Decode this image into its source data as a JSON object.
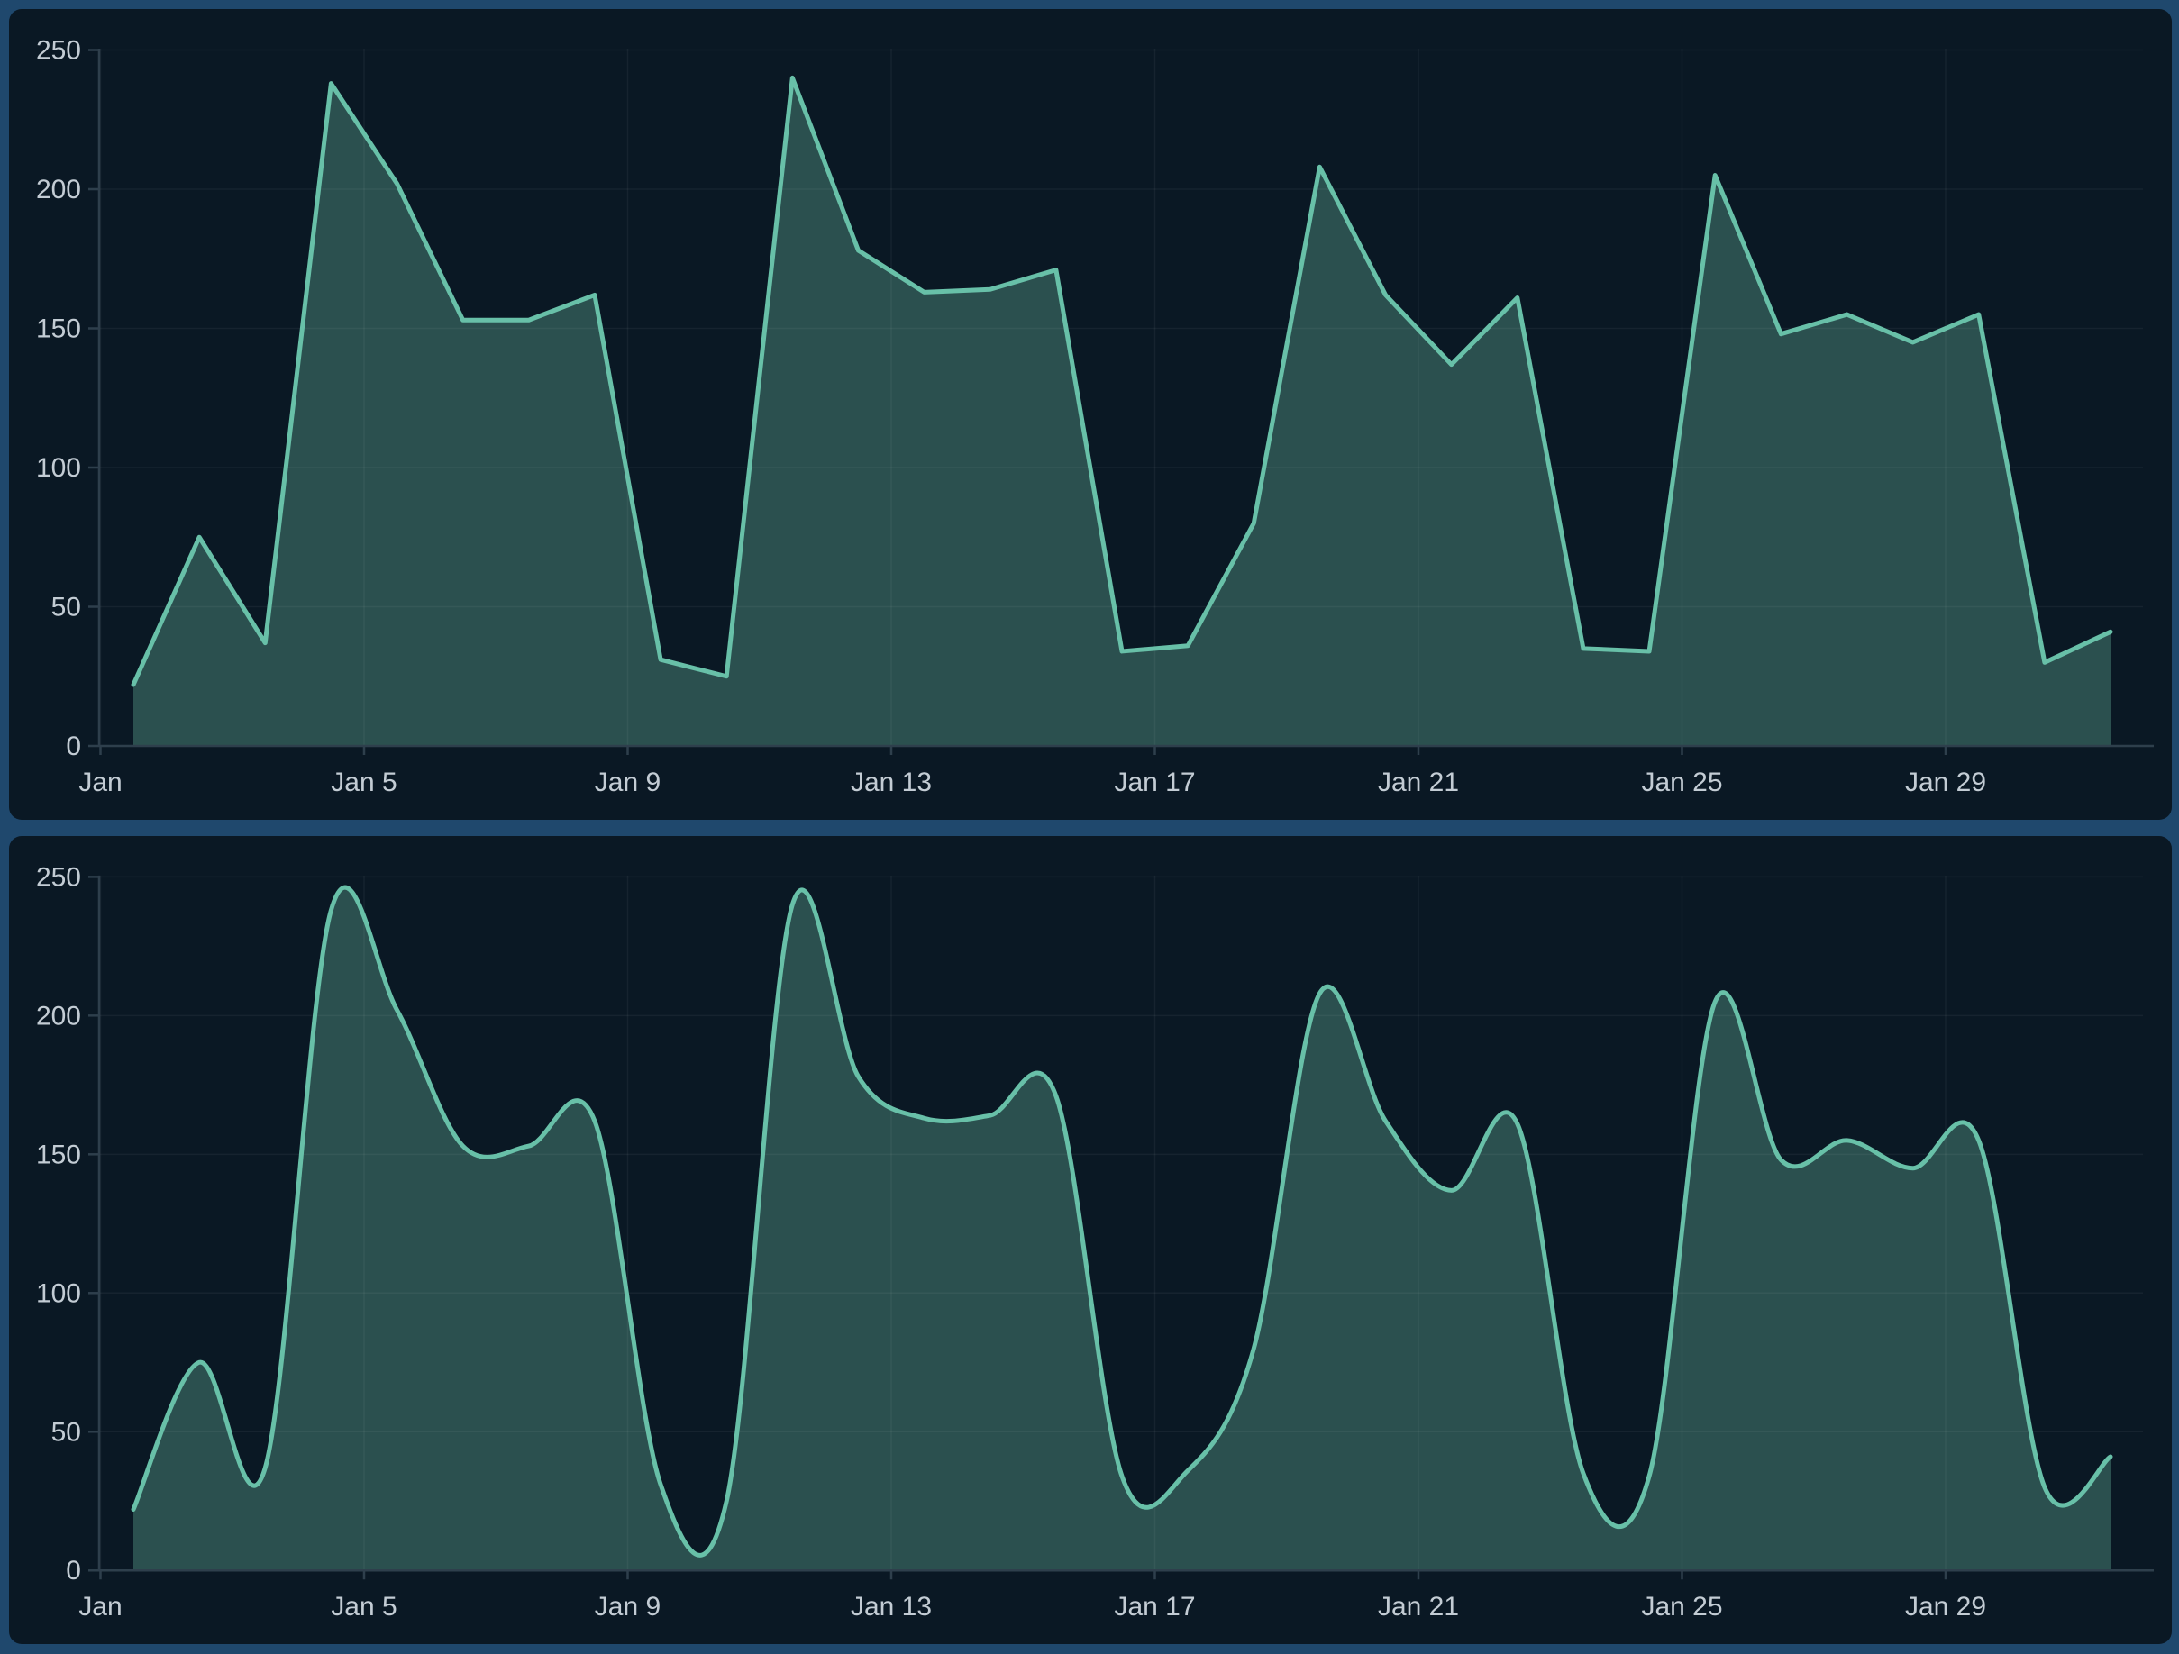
{
  "page": {
    "background_color": "#1f486d",
    "panel_color": "#0a1824"
  },
  "chart_data": [
    {
      "type": "area",
      "name": "daily-series-linear",
      "interpolation": "linear",
      "title": "",
      "xlabel": "",
      "ylabel": "",
      "x": [
        "Jan 1",
        "Jan 2",
        "Jan 3",
        "Jan 4",
        "Jan 5",
        "Jan 6",
        "Jan 7",
        "Jan 8",
        "Jan 9",
        "Jan 10",
        "Jan 11",
        "Jan 12",
        "Jan 13",
        "Jan 14",
        "Jan 15",
        "Jan 16",
        "Jan 17",
        "Jan 18",
        "Jan 19",
        "Jan 20",
        "Jan 21",
        "Jan 22",
        "Jan 23",
        "Jan 24",
        "Jan 25",
        "Jan 26",
        "Jan 27",
        "Jan 28",
        "Jan 29",
        "Jan 30",
        "Jan 31"
      ],
      "values": [
        22,
        75,
        37,
        238,
        202,
        153,
        153,
        162,
        31,
        25,
        240,
        178,
        163,
        164,
        171,
        34,
        36,
        80,
        208,
        162,
        137,
        161,
        35,
        34,
        205,
        148,
        155,
        145,
        155,
        30,
        41
      ],
      "ylim": [
        0,
        250
      ],
      "ytick_labels": [
        "0",
        "50",
        "100",
        "150",
        "200",
        "250"
      ],
      "ytick_values": [
        0,
        50,
        100,
        150,
        200,
        250
      ],
      "xtick_labels": [
        "Jan",
        "Jan 5",
        "Jan 9",
        "Jan 13",
        "Jan 17",
        "Jan 21",
        "Jan 25",
        "Jan 29"
      ],
      "grid": true,
      "legend": false,
      "line_color": "#68c0a8",
      "fill_color": "#2b504f",
      "grid_color": "rgba(255,255,255,0.05)",
      "axis_color": "#2e3f4c",
      "label_color": "#c3ccd4"
    },
    {
      "type": "area",
      "name": "daily-series-smooth",
      "interpolation": "smooth",
      "title": "",
      "xlabel": "",
      "ylabel": "",
      "x": [
        "Jan 1",
        "Jan 2",
        "Jan 3",
        "Jan 4",
        "Jan 5",
        "Jan 6",
        "Jan 7",
        "Jan 8",
        "Jan 9",
        "Jan 10",
        "Jan 11",
        "Jan 12",
        "Jan 13",
        "Jan 14",
        "Jan 15",
        "Jan 16",
        "Jan 17",
        "Jan 18",
        "Jan 19",
        "Jan 20",
        "Jan 21",
        "Jan 22",
        "Jan 23",
        "Jan 24",
        "Jan 25",
        "Jan 26",
        "Jan 27",
        "Jan 28",
        "Jan 29",
        "Jan 30",
        "Jan 31"
      ],
      "values": [
        22,
        75,
        37,
        238,
        202,
        153,
        153,
        162,
        31,
        25,
        240,
        178,
        163,
        164,
        171,
        34,
        36,
        80,
        208,
        162,
        137,
        161,
        35,
        34,
        205,
        148,
        155,
        145,
        155,
        30,
        41
      ],
      "ylim": [
        0,
        250
      ],
      "ytick_labels": [
        "0",
        "50",
        "100",
        "150",
        "200",
        "250"
      ],
      "ytick_values": [
        0,
        50,
        100,
        150,
        200,
        250
      ],
      "xtick_labels": [
        "Jan",
        "Jan 5",
        "Jan 9",
        "Jan 13",
        "Jan 17",
        "Jan 21",
        "Jan 25",
        "Jan 29"
      ],
      "grid": true,
      "legend": false,
      "line_color": "#68c0a8",
      "fill_color": "#2b504f",
      "grid_color": "rgba(255,255,255,0.05)",
      "axis_color": "#2e3f4c",
      "label_color": "#c3ccd4"
    }
  ]
}
